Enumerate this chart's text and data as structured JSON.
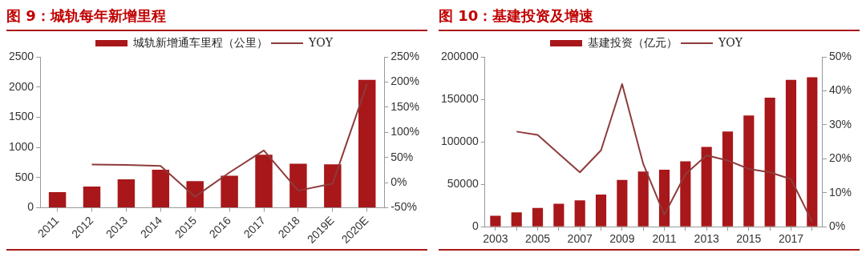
{
  "chart_data": [
    {
      "type": "bar",
      "title": "图 9：城轨每年新增里程",
      "categories": [
        "2011",
        "2012",
        "2013",
        "2014",
        "2015",
        "2016",
        "2017",
        "2018",
        "2019E",
        "2020E"
      ],
      "series": [
        {
          "name": "城轨新增通车里程（公里）",
          "color": "#a8171a",
          "values": [
            260,
            350,
            470,
            630,
            440,
            530,
            880,
            730,
            720,
            2120
          ]
        },
        {
          "name": "YOY",
          "type": "line",
          "axis": "y2",
          "color": "#8e3b3b",
          "values": [
            null,
            36,
            35,
            33,
            -28,
            20,
            64,
            -16,
            -2,
            196
          ]
        }
      ],
      "ylim": [
        0,
        2500
      ],
      "yticks": [
        0,
        500,
        1000,
        1500,
        2000,
        2500
      ],
      "y2lim": [
        -50,
        250
      ],
      "y2ticks": [
        {
          "value": -50,
          "label": "-50%"
        },
        {
          "value": 0,
          "label": "0%"
        },
        {
          "value": 50,
          "label": "50%"
        },
        {
          "value": 100,
          "label": "100%"
        },
        {
          "value": 150,
          "label": "150%"
        },
        {
          "value": 200,
          "label": "200%"
        },
        {
          "value": 250,
          "label": "250%"
        }
      ],
      "legend": "top",
      "grid": false,
      "marker": "none"
    },
    {
      "type": "bar",
      "title": "图 10：基建投资及增速",
      "categories": [
        "2003",
        null,
        "2005",
        null,
        "2007",
        null,
        "2009",
        null,
        "2011",
        null,
        "2013",
        null,
        "2015",
        null,
        "2017",
        null
      ],
      "series": [
        {
          "name": "基建投资（亿元）",
          "color": "#a8171a",
          "values": [
            13000,
            17000,
            22000,
            27000,
            31000,
            38000,
            55000,
            65000,
            67000,
            77000,
            94000,
            112000,
            131000,
            152000,
            173000,
            176000
          ]
        },
        {
          "name": "YOY",
          "type": "line",
          "axis": "y2",
          "color": "#8e3b3b",
          "values": [
            null,
            28,
            27,
            21.5,
            16,
            22.5,
            42,
            18.5,
            3.5,
            15.5,
            21,
            19.5,
            17,
            16,
            14,
            1.5
          ]
        }
      ],
      "ylim": [
        0,
        200000
      ],
      "yticks": [
        0,
        50000,
        100000,
        150000,
        200000
      ],
      "y2lim": [
        0,
        50
      ],
      "y2ticks": [
        {
          "value": 0,
          "label": "0%"
        },
        {
          "value": 10,
          "label": "10%"
        },
        {
          "value": 20,
          "label": "20%"
        },
        {
          "value": 30,
          "label": "30%"
        },
        {
          "value": 40,
          "label": "40%"
        },
        {
          "value": 50,
          "label": "50%"
        }
      ],
      "legend": "top",
      "grid": false,
      "marker": "none"
    }
  ]
}
